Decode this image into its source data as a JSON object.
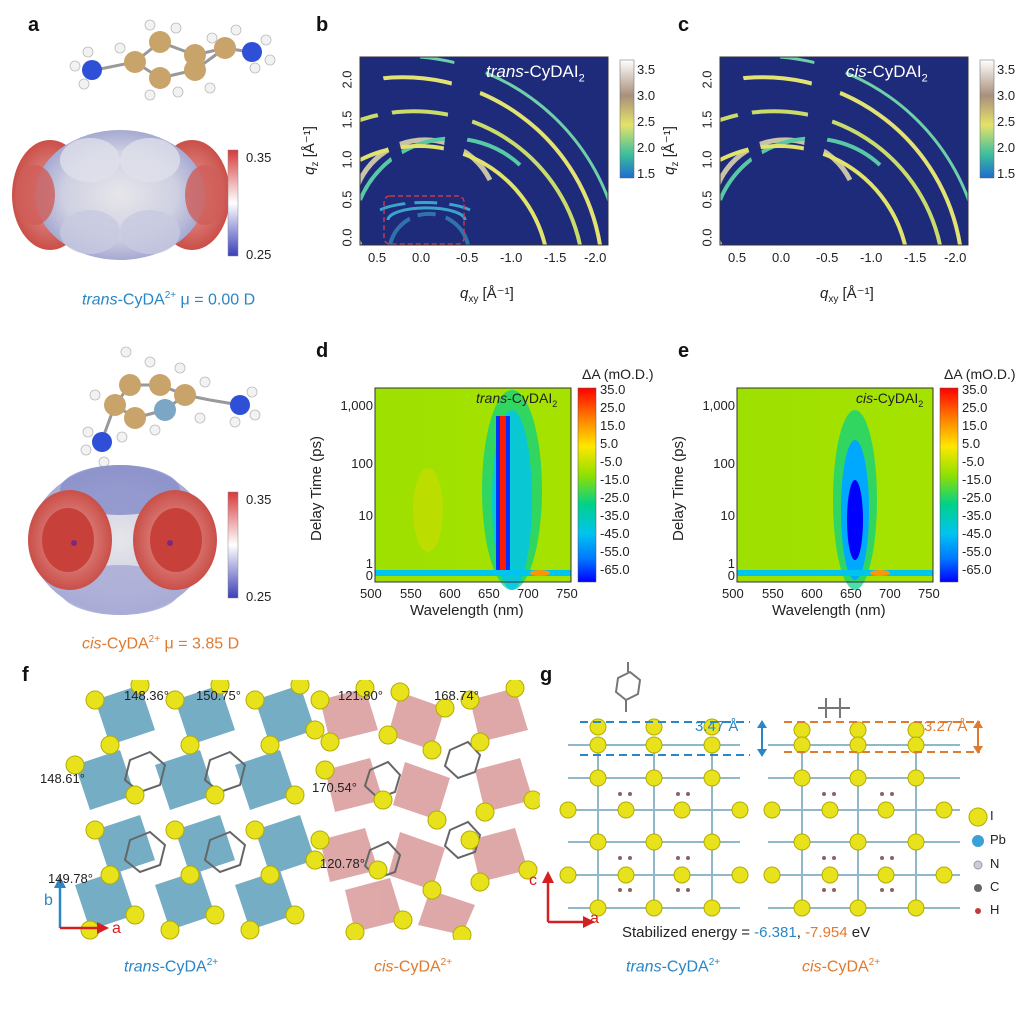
{
  "panels": {
    "a": "a",
    "b": "b",
    "c": "c",
    "d": "d",
    "e": "e",
    "f": "f",
    "g": "g"
  },
  "panel_a": {
    "trans_caption_species": "trans",
    "trans_caption_rest": "-CyDA",
    "trans_charge": "2+",
    "trans_mu": "μ = 0.00 D",
    "cis_caption_species": "cis",
    "cis_caption_rest": "-CyDA",
    "cis_charge": "2+",
    "cis_mu": "μ = 3.85 D",
    "colorbar_top": "0.35",
    "colorbar_bottom": "0.25"
  },
  "panel_b": {
    "title_prefix": "trans",
    "title_suffix": "-CyDAI",
    "title_sub": "2",
    "cbar_ticks": [
      "3.5",
      "3.0",
      "2.5",
      "2.0",
      "1.5"
    ],
    "xticks": [
      "0.5",
      "0.0",
      "-0.5",
      "-1.0",
      "-1.5",
      "-2.0"
    ],
    "yticks": [
      "2.0",
      "1.5",
      "1.0",
      "0.5",
      "0.0"
    ],
    "xlabel": "q",
    "xlabel_sub": "xy",
    "xlabel_unit": " [Å⁻¹]",
    "ylabel": "q",
    "ylabel_sub": "z",
    "ylabel_unit": " [Å⁻¹]"
  },
  "panel_c": {
    "title_prefix": "cis",
    "title_suffix": "-CyDAI",
    "title_sub": "2",
    "cbar_ticks": [
      "3.5",
      "3.0",
      "2.5",
      "2.0",
      "1.5"
    ]
  },
  "panel_d": {
    "cbar_title": "ΔA (mO.D.)",
    "cbar_ticks": [
      "35.0",
      "25.0",
      "15.0",
      "5.0",
      "-5.0",
      "-15.0",
      "-25.0",
      "-35.0",
      "-45.0",
      "-55.0",
      "-65.0"
    ],
    "xticks": [
      "500",
      "550",
      "600",
      "650",
      "700",
      "750"
    ],
    "yticks": [
      "1,000",
      "100",
      "10",
      "1",
      "0"
    ],
    "xlabel": "Wavelength (nm)",
    "ylabel": "Delay Time (ps)",
    "title_prefix": "trans",
    "title_suffix": "-CyDAI",
    "title_sub": "2"
  },
  "panel_e": {
    "title_prefix": "cis",
    "title_suffix": "-CyDAI",
    "title_sub": "2"
  },
  "panel_f": {
    "angles_trans": [
      "148.36°",
      "150.75°",
      "148.61°",
      "149.78°"
    ],
    "angles_cis": [
      "121.80°",
      "168.74°",
      "170.54°",
      "120.78°"
    ],
    "axis_b": "b",
    "axis_a": "a",
    "trans_label_species": "trans",
    "trans_label_rest": "-CyDA",
    "charge": "2+",
    "cis_label_species": "cis",
    "cis_label_rest": "-CyDA"
  },
  "panel_g": {
    "dist_trans": "3.47 Å",
    "dist_cis": "3.27 Å",
    "axis_c": "c",
    "axis_a": "a",
    "legend": [
      "I",
      "Pb",
      "N",
      "C",
      "H"
    ],
    "energy_prefix": "Stabilized energy = ",
    "energy_trans": "-6.381",
    "energy_sep": ", ",
    "energy_cis": "-7.954",
    "energy_unit": " eV",
    "trans_label_species": "trans",
    "trans_label_rest": "-CyDA",
    "cis_label_species": "cis",
    "cis_label_rest": "-CyDA",
    "charge": "2+"
  },
  "colors": {
    "blue": "#2a86c6",
    "orange": "#e07a2e",
    "iodine": "#e8e21c",
    "octa_trans": "#5c9fba",
    "octa_cis": "#d99a9a",
    "giwaxs_bg": "#1e2a7a"
  }
}
